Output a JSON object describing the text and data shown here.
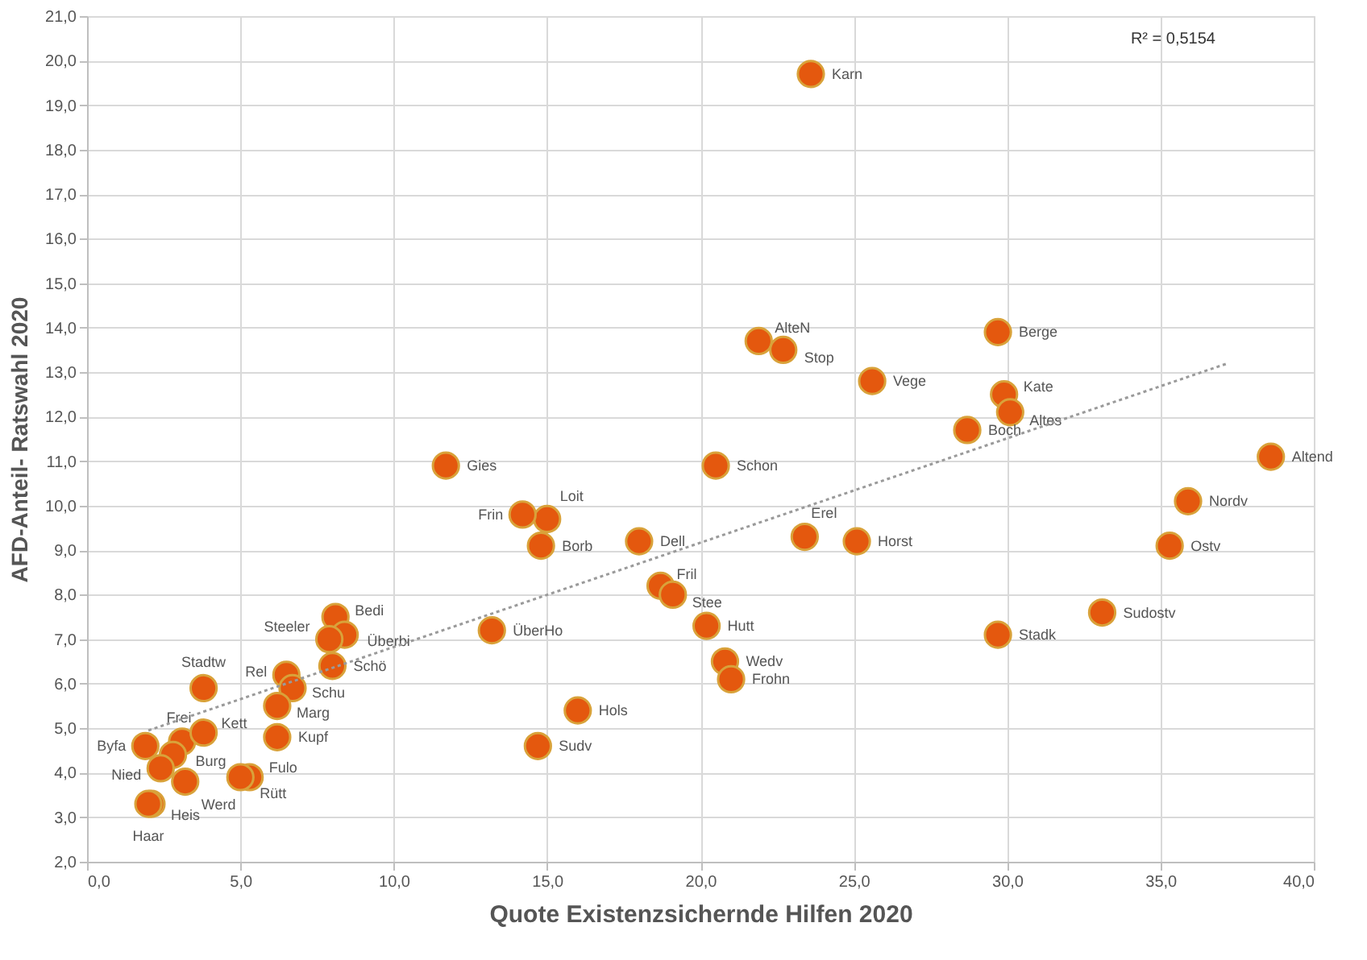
{
  "chart_data": {
    "type": "scatter",
    "xlabel": "Quote Existenzsichernde Hilfen 2020",
    "ylabel": "AFD-Anteil- Ratswahl 2020",
    "annotations": [
      "R² = 0,5154"
    ],
    "grid": true,
    "xlim": [
      0,
      40
    ],
    "xticks": [
      {
        "value": 0,
        "label": "0,0"
      },
      {
        "value": 5,
        "label": "5,0"
      },
      {
        "value": 10,
        "label": "10,0"
      },
      {
        "value": 15,
        "label": "15,0"
      },
      {
        "value": 20,
        "label": "20,0"
      },
      {
        "value": 25,
        "label": "25,0"
      },
      {
        "value": 30,
        "label": "30,0"
      },
      {
        "value": 35,
        "label": "35,0"
      },
      {
        "value": 40,
        "label": "40,0"
      }
    ],
    "ylim": [
      2,
      21
    ],
    "yticks": [
      {
        "value": 2,
        "label": "2,0"
      },
      {
        "value": 3,
        "label": "3,0"
      },
      {
        "value": 4,
        "label": "4,0"
      },
      {
        "value": 5,
        "label": "5,0"
      },
      {
        "value": 6,
        "label": "6,0"
      },
      {
        "value": 7,
        "label": "7,0"
      },
      {
        "value": 8,
        "label": "8,0"
      },
      {
        "value": 9,
        "label": "9,0"
      },
      {
        "value": 10,
        "label": "10,0"
      },
      {
        "value": 11,
        "label": "11,0"
      },
      {
        "value": 12,
        "label": "12,0"
      },
      {
        "value": 13,
        "label": "13,0"
      },
      {
        "value": 14,
        "label": "14,0"
      },
      {
        "value": 15,
        "label": "15,0"
      },
      {
        "value": 16,
        "label": "16,0"
      },
      {
        "value": 17,
        "label": "17,0"
      },
      {
        "value": 18,
        "label": "18,0"
      },
      {
        "value": 19,
        "label": "19,0"
      },
      {
        "value": 20,
        "label": "20,0"
      },
      {
        "value": 21,
        "label": "21,0"
      }
    ],
    "series": [
      {
        "type": "scatter",
        "color": "#e4580e",
        "marker": "circle",
        "x": [
          23.6,
          21.9,
          22.7,
          25.6,
          29.7,
          29.9,
          30.1,
          28.7,
          38.6,
          35.9,
          35.3,
          33.1,
          29.7,
          25.1,
          23.4,
          20.5,
          18.0,
          18.7,
          19.1,
          20.2,
          20.8,
          21.0,
          16.0,
          14.7,
          11.7,
          15.0,
          14.2,
          14.8,
          13.2,
          8.1,
          8.4,
          8.0,
          7.9,
          6.5,
          6.7,
          6.2,
          6.2,
          3.8,
          3.1,
          1.9,
          3.8,
          2.8,
          2.4,
          3.2,
          5.3,
          5.0,
          2.1,
          2.0
        ],
        "values": [
          19.7,
          13.7,
          13.5,
          12.8,
          13.9,
          12.5,
          12.1,
          11.7,
          11.1,
          10.1,
          9.1,
          7.6,
          7.1,
          9.2,
          9.3,
          10.9,
          9.2,
          8.2,
          8.0,
          7.3,
          6.5,
          6.1,
          5.4,
          4.6,
          10.9,
          9.7,
          9.8,
          9.1,
          7.2,
          7.5,
          7.1,
          6.4,
          7.0,
          6.2,
          5.9,
          5.5,
          4.8,
          5.9,
          4.7,
          4.6,
          4.9,
          4.4,
          4.1,
          3.8,
          3.9,
          3.9,
          3.3,
          3.3
        ],
        "value_labels": [
          "Karn",
          "AlteN",
          "Stop",
          "Vege",
          "Berge",
          "Kate",
          "Altes",
          "Boch",
          "Altend",
          "Nordv",
          "Ostv",
          "Sudostv",
          "Stadk",
          "Horst",
          "Erel",
          "Schon",
          "Dell",
          "Fril",
          "Stee",
          "Hutt",
          "Wedv",
          "Frohn",
          "Hols",
          "Sudv",
          "Gies",
          "Loit",
          "Frin",
          "Borb",
          "ÜberHo",
          "Bedi",
          "Überbi",
          "Schö",
          "Steeler",
          "Rel",
          "Schu",
          "Marg",
          "Kupf",
          "Stadtw",
          "Frei",
          "Byfa",
          "Kett",
          "Burg",
          "Nied",
          "Werd",
          "Fulo",
          "Rütt",
          "Heis",
          "Haar"
        ]
      },
      {
        "type": "line",
        "color": "#9a9a9a",
        "line_style": "dotted",
        "marker": "none",
        "x": [
          2.0,
          37.2
        ],
        "values": [
          4.95,
          13.2
        ]
      }
    ]
  }
}
